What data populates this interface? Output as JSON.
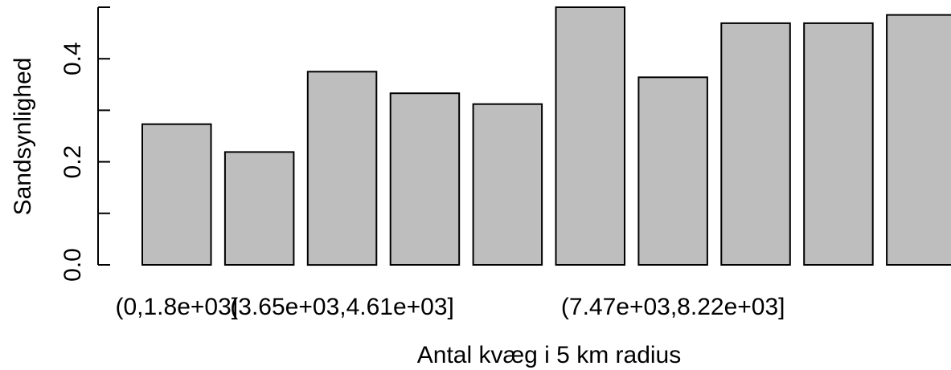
{
  "chart_data": {
    "type": "bar",
    "xlabel": "Antal kvæg i 5 km radius",
    "ylabel": "Sandsynlighed",
    "ylim": [
      0,
      0.5
    ],
    "y_ticks": [
      0.0,
      0.1,
      0.2,
      0.3,
      0.4,
      0.5
    ],
    "y_tick_labels": [
      "0.0",
      "",
      "0.2",
      "",
      "0.4",
      ""
    ],
    "categories": [
      "(0,1.8e+03]",
      "",
      "(3.65e+03,4.61e+03]",
      "",
      "",
      "",
      "(7.47e+03,8.22e+03]",
      "",
      "",
      ""
    ],
    "values": [
      0.273,
      0.219,
      0.375,
      0.333,
      0.312,
      0.5,
      0.364,
      0.469,
      0.469,
      0.485
    ],
    "bar_color": "#bebebe",
    "grid": false
  }
}
